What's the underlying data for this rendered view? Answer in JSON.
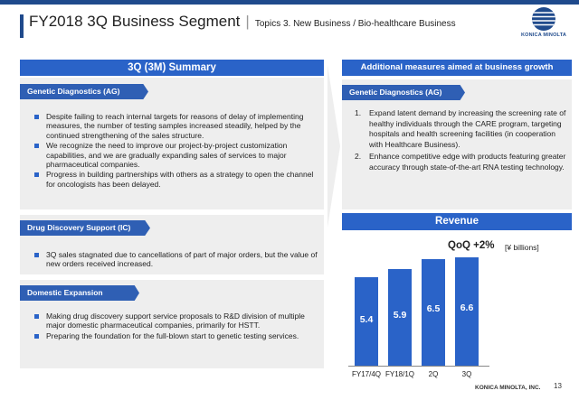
{
  "header": {
    "title": "FY2018 3Q Business Segment",
    "separator": "|",
    "subtitle": "Topics 3. New Business / Bio-healthcare Business",
    "logo_text": "KONICA MINOLTA"
  },
  "left": {
    "summary_title": "3Q (3M) Summary",
    "sections": [
      {
        "tag": "Genetic Diagnostics (AG)",
        "bullets": [
          "Despite failing to reach internal targets for reasons of delay of implementing measures, the number of testing samples increased steadily, helped by the continued strengthening of the sales structure.",
          "We recognize the need to improve our project-by-project customization capabilities, and we are gradually expanding sales of services to major pharmaceutical companies.",
          "Progress in building partnerships with others as a strategy to open the channel for oncologists has been delayed."
        ]
      },
      {
        "tag": "Drug Discovery Support (IC)",
        "bullets": [
          "3Q sales stagnated due to cancellations of part of major orders, but the value of new orders received increased."
        ]
      },
      {
        "tag": "Domestic Expansion",
        "bullets": [
          "Making drug discovery support service proposals to R&D division of multiple major domestic pharmaceutical companies, primarily for HSTT.",
          "Preparing the foundation for the full-blown start to genetic testing services."
        ]
      }
    ]
  },
  "right": {
    "measures_title": "Additional measures aimed at business growth",
    "tag": "Genetic Diagnostics (AG)",
    "items": [
      {
        "num": "1.",
        "text": "Expand latent demand by increasing the screening rate of healthy individuals through the CARE program, targeting hospitals and health screening facilities (in cooperation with Healthcare Business)."
      },
      {
        "num": "2.",
        "text": "Enhance competitive edge with products featuring greater accuracy through state-of-the-art RNA testing technology."
      }
    ],
    "revenue_title": "Revenue"
  },
  "chart_data": {
    "type": "bar",
    "title": "Revenue",
    "categories": [
      "FY17/4Q",
      "FY18/1Q",
      "2Q",
      "3Q"
    ],
    "values": [
      5.4,
      5.9,
      6.5,
      6.6
    ],
    "ylabel": "",
    "unit": "[¥ billions]",
    "annotation": "QoQ +2%",
    "grid": false,
    "bar_color": "#2a63c8"
  },
  "footer": {
    "company": "KONICA MINOLTA, INC.",
    "page": "13"
  },
  "colors": {
    "primary_blue": "#2a63c8",
    "dark_blue": "#1f4a8c",
    "panel_gray": "#eeeeee"
  }
}
